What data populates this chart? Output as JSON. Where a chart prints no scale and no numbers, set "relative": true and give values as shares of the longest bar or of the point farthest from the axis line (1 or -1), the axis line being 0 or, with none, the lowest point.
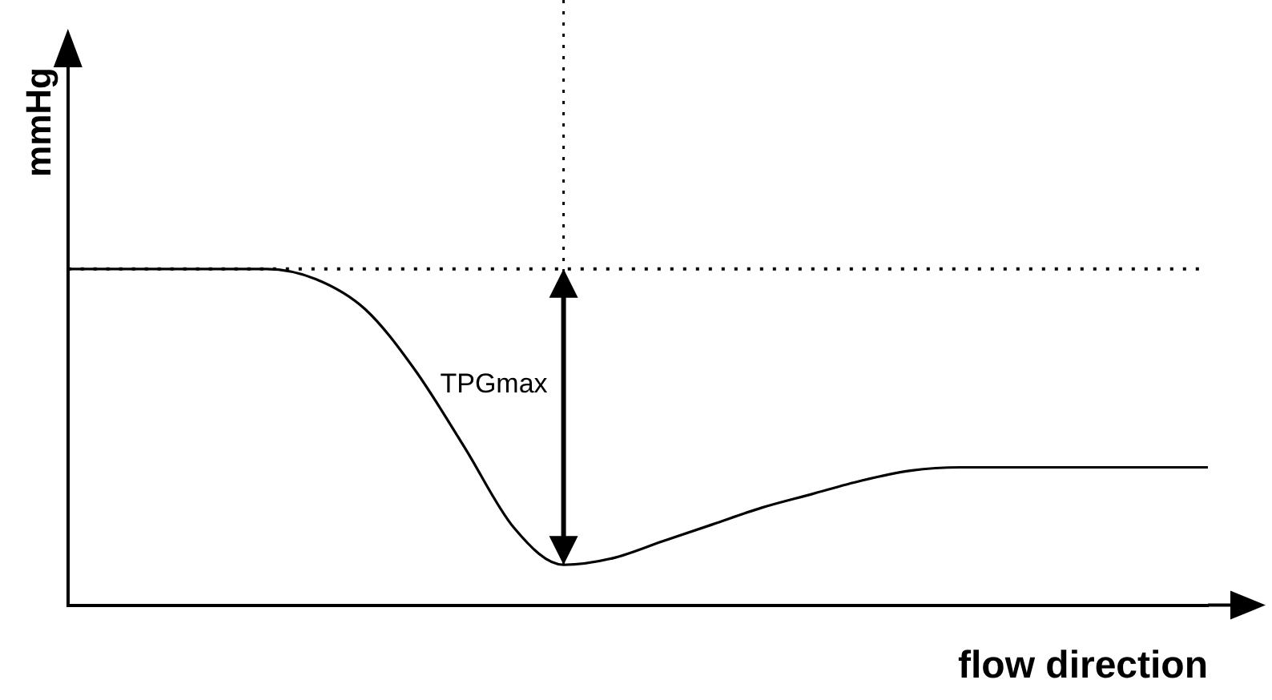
{
  "chart_data": {
    "type": "line",
    "relative": true,
    "categories": [
      null,
      null,
      null,
      null,
      null,
      null,
      null,
      null,
      null,
      null,
      null,
      null,
      null,
      null,
      null,
      null,
      null,
      null,
      null,
      null,
      null,
      null,
      null,
      null
    ],
    "values": [
      1,
      1,
      1,
      1,
      1,
      0.97,
      0.88,
      0.7,
      0.47,
      0.23,
      0.12,
      0.14,
      0.19,
      0.24,
      0.29,
      0.33,
      0.37,
      0.4,
      0.41,
      0.41,
      0.41,
      0.41,
      0.41,
      0.41
    ],
    "color": "#000000",
    "xlabel": "flow direction",
    "ylabel": "mmHg",
    "annotations": [
      "TPGmax"
    ],
    "ref_lines": [
      {
        "axis": "y",
        "value": 1,
        "line_style": "dotted"
      }
    ],
    "marker": "none",
    "grid": false,
    "legend": false
  }
}
